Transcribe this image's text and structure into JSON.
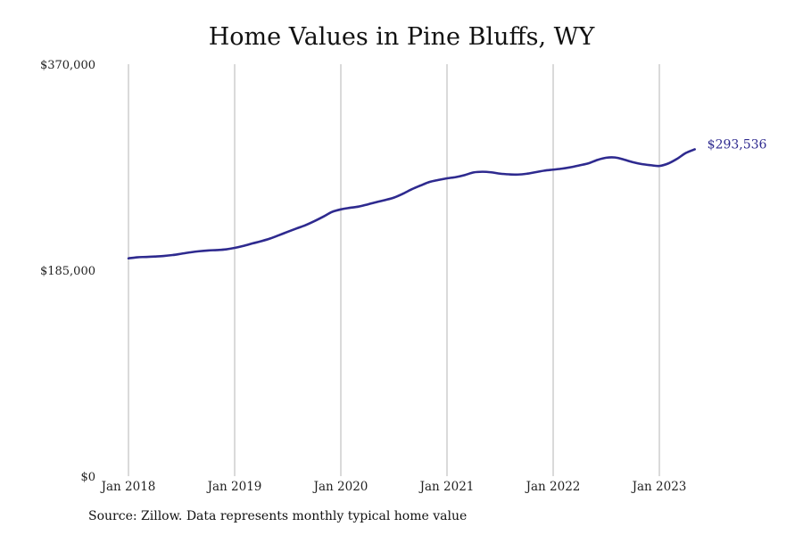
{
  "chart_data": {
    "type": "line",
    "title": "Home Values in Pine Bluffs, WY",
    "xlabel": "",
    "ylabel": "",
    "ylim": [
      0,
      370000
    ],
    "y_ticks": [
      {
        "value": 0,
        "label": "$0"
      },
      {
        "value": 185000,
        "label": "$185,000"
      },
      {
        "value": 370000,
        "label": "$370,000"
      }
    ],
    "x_ticks": [
      {
        "value": 2018,
        "label": "Jan 2018"
      },
      {
        "value": 2019,
        "label": "Jan 2019"
      },
      {
        "value": 2020,
        "label": "Jan 2020"
      },
      {
        "value": 2021,
        "label": "Jan 2021"
      },
      {
        "value": 2022,
        "label": "Jan 2022"
      },
      {
        "value": 2023,
        "label": "Jan 2023"
      }
    ],
    "grid": "vertical",
    "line_color": "#2e2a8f",
    "series": [
      {
        "points": [
          [
            "2018-01",
            195600
          ],
          [
            "2018-02",
            196600
          ],
          [
            "2018-03",
            196900
          ],
          [
            "2018-04",
            197300
          ],
          [
            "2018-05",
            197800
          ],
          [
            "2018-06",
            198600
          ],
          [
            "2018-07",
            199800
          ],
          [
            "2018-08",
            201000
          ],
          [
            "2018-09",
            202000
          ],
          [
            "2018-10",
            202700
          ],
          [
            "2018-11",
            203100
          ],
          [
            "2018-12",
            203700
          ],
          [
            "2019-01",
            205000
          ],
          [
            "2019-02",
            206800
          ],
          [
            "2019-03",
            209000
          ],
          [
            "2019-04",
            211000
          ],
          [
            "2019-05",
            213400
          ],
          [
            "2019-06",
            216400
          ],
          [
            "2019-07",
            219500
          ],
          [
            "2019-08",
            222500
          ],
          [
            "2019-09",
            225400
          ],
          [
            "2019-10",
            229000
          ],
          [
            "2019-11",
            233000
          ],
          [
            "2019-12",
            237300
          ],
          [
            "2020-01",
            239600
          ],
          [
            "2020-02",
            241000
          ],
          [
            "2020-03",
            242100
          ],
          [
            "2020-04",
            244000
          ],
          [
            "2020-05",
            246100
          ],
          [
            "2020-06",
            248000
          ],
          [
            "2020-07",
            250200
          ],
          [
            "2020-08",
            253600
          ],
          [
            "2020-09",
            257600
          ],
          [
            "2020-10",
            261000
          ],
          [
            "2020-11",
            264200
          ],
          [
            "2020-12",
            266000
          ],
          [
            "2021-01",
            267500
          ],
          [
            "2021-02",
            268600
          ],
          [
            "2021-03",
            270400
          ],
          [
            "2021-04",
            272800
          ],
          [
            "2021-05",
            273400
          ],
          [
            "2021-06",
            272900
          ],
          [
            "2021-07",
            271700
          ],
          [
            "2021-08",
            271100
          ],
          [
            "2021-09",
            270900
          ],
          [
            "2021-10",
            271600
          ],
          [
            "2021-11",
            273000
          ],
          [
            "2021-12",
            274400
          ],
          [
            "2022-01",
            275300
          ],
          [
            "2022-02",
            276200
          ],
          [
            "2022-03",
            277500
          ],
          [
            "2022-04",
            279200
          ],
          [
            "2022-05",
            281000
          ],
          [
            "2022-06",
            284000
          ],
          [
            "2022-07",
            286000
          ],
          [
            "2022-08",
            286200
          ],
          [
            "2022-09",
            284300
          ],
          [
            "2022-10",
            282000
          ],
          [
            "2022-11",
            280300
          ],
          [
            "2022-12",
            279300
          ],
          [
            "2023-01",
            278600
          ],
          [
            "2023-02",
            280800
          ],
          [
            "2023-03",
            285000
          ],
          [
            "2023-04",
            290300
          ],
          [
            "2023-05",
            293536
          ]
        ]
      }
    ],
    "end_label": "$293,536"
  },
  "footer": {
    "source": "Source: Zillow. Data represents monthly typical home value"
  }
}
